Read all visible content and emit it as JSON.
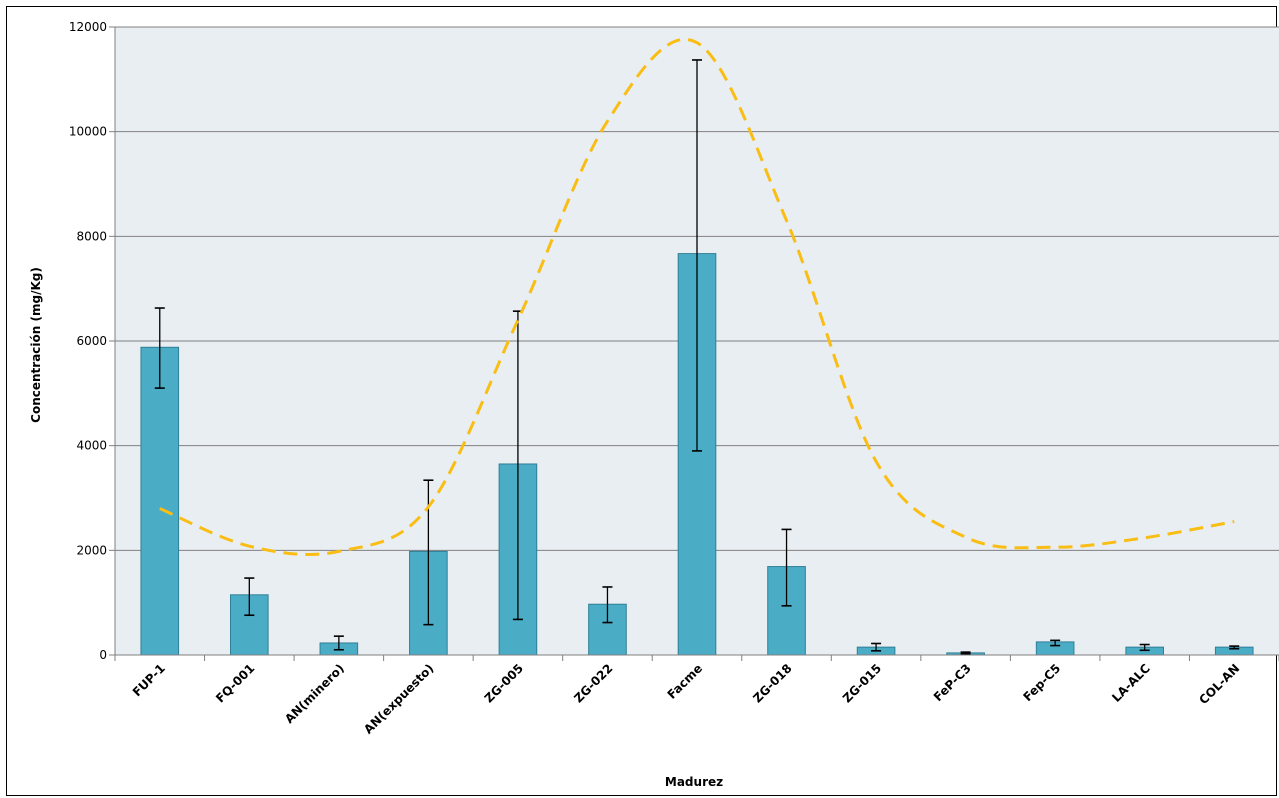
{
  "chart_data": {
    "type": "bar",
    "title": "",
    "xlabel": "Madurez",
    "ylabel": "Concentración (mg/Kg)",
    "ylim": [
      0,
      12000
    ],
    "yticks": [
      0,
      2000,
      4000,
      6000,
      8000,
      10000,
      12000
    ],
    "grid": true,
    "categories": [
      "FUP-1",
      "FQ-001",
      "AN(minero)",
      "AN(expuesto)",
      "ZG-005",
      "ZG-022",
      "Facme",
      "ZG-018",
      "ZG-015",
      "FeP-C3",
      "Fep-C5",
      "LA-ALC",
      "COL-AN"
    ],
    "series": [
      {
        "values": [
          5880,
          1150,
          230,
          1980,
          3650,
          970,
          7670,
          1690,
          150,
          40,
          250,
          150,
          150
        ],
        "error_low": [
          5100,
          760,
          100,
          580,
          680,
          620,
          3900,
          940,
          80,
          25,
          180,
          90,
          120
        ],
        "error_high": [
          6630,
          1470,
          360,
          3340,
          6570,
          1300,
          11370,
          2400,
          220,
          55,
          280,
          200,
          170
        ],
        "color": "#4BACC6"
      }
    ],
    "trend_line": {
      "style": "dashed",
      "color": "#F9BD14",
      "values": [
        2800,
        2080,
        1980,
        2830,
        6400,
        10200,
        11700,
        8300,
        3700,
        2250,
        2060,
        2240,
        2550
      ]
    },
    "colors": {
      "plot_background": "#E9EEF3",
      "gridline": "#808080",
      "axis": "#808080",
      "error_bar": "#000000"
    }
  }
}
